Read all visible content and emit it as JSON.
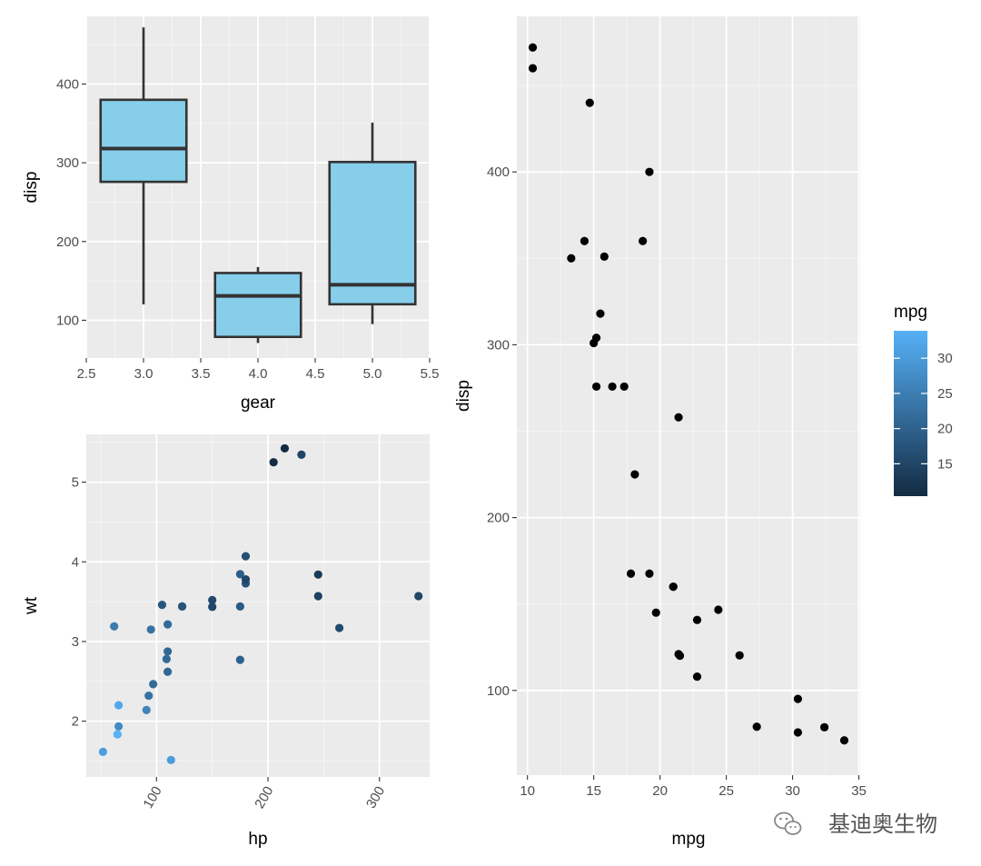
{
  "chart_data": [
    {
      "type": "box",
      "xlabel": "gear",
      "ylabel": "disp",
      "xlim": [
        2.5,
        5.5
      ],
      "ylim": [
        52,
        486
      ],
      "x_ticks": [
        "2.5",
        "3.0",
        "3.5",
        "4.0",
        "4.5",
        "5.0",
        "5.5"
      ],
      "x_tick_values": [
        2.5,
        3.0,
        3.5,
        4.0,
        4.5,
        5.0,
        5.5
      ],
      "y_ticks": [
        "100",
        "200",
        "300",
        "400"
      ],
      "y_tick_values": [
        100,
        200,
        300,
        400
      ],
      "fill_color": "#87CEEB",
      "line_color": "#333333",
      "boxes": [
        {
          "x": 3.0,
          "lower_whisker": 120.1,
          "q1": 275.8,
          "median": 318.0,
          "q3": 380.0,
          "upper_whisker": 472.0
        },
        {
          "x": 4.0,
          "lower_whisker": 71.1,
          "q1": 78.85,
          "median": 130.9,
          "q3": 160.0,
          "upper_whisker": 167.6
        },
        {
          "x": 5.0,
          "lower_whisker": 95.1,
          "q1": 120.3,
          "median": 145.0,
          "q3": 301.0,
          "upper_whisker": 351.0
        }
      ],
      "grid": true
    },
    {
      "type": "scatter",
      "xlabel": "hp",
      "ylabel": "wt",
      "xlim": [
        37,
        345
      ],
      "ylim": [
        1.3,
        5.6
      ],
      "x_ticks": [
        "100",
        "200",
        "300"
      ],
      "x_tick_values": [
        100,
        200,
        300
      ],
      "x_tick_rotation": -60,
      "y_ticks": [
        "2",
        "3",
        "4",
        "5"
      ],
      "y_tick_values": [
        2,
        3,
        4,
        5
      ],
      "color_by": "mpg",
      "color_low": "#132B43",
      "color_high": "#56B1F7",
      "color_range": [
        10.4,
        33.9
      ],
      "points": [
        {
          "x": 110,
          "y": 2.62,
          "c": 21.0
        },
        {
          "x": 110,
          "y": 2.875,
          "c": 21.0
        },
        {
          "x": 93,
          "y": 2.32,
          "c": 22.8
        },
        {
          "x": 110,
          "y": 3.215,
          "c": 21.4
        },
        {
          "x": 175,
          "y": 3.44,
          "c": 18.7
        },
        {
          "x": 105,
          "y": 3.46,
          "c": 18.1
        },
        {
          "x": 245,
          "y": 3.57,
          "c": 14.3
        },
        {
          "x": 62,
          "y": 3.19,
          "c": 24.4
        },
        {
          "x": 95,
          "y": 3.15,
          "c": 22.8
        },
        {
          "x": 123,
          "y": 3.44,
          "c": 19.2
        },
        {
          "x": 123,
          "y": 3.44,
          "c": 17.8
        },
        {
          "x": 180,
          "y": 4.07,
          "c": 16.4
        },
        {
          "x": 180,
          "y": 3.73,
          "c": 17.3
        },
        {
          "x": 180,
          "y": 3.78,
          "c": 15.2
        },
        {
          "x": 205,
          "y": 5.25,
          "c": 10.4
        },
        {
          "x": 215,
          "y": 5.424,
          "c": 10.4
        },
        {
          "x": 230,
          "y": 5.345,
          "c": 14.7
        },
        {
          "x": 66,
          "y": 2.2,
          "c": 32.4
        },
        {
          "x": 52,
          "y": 1.615,
          "c": 30.4
        },
        {
          "x": 65,
          "y": 1.835,
          "c": 33.9
        },
        {
          "x": 97,
          "y": 2.465,
          "c": 21.5
        },
        {
          "x": 150,
          "y": 3.52,
          "c": 15.5
        },
        {
          "x": 150,
          "y": 3.435,
          "c": 15.2
        },
        {
          "x": 245,
          "y": 3.84,
          "c": 13.3
        },
        {
          "x": 175,
          "y": 3.845,
          "c": 19.2
        },
        {
          "x": 66,
          "y": 1.935,
          "c": 27.3
        },
        {
          "x": 91,
          "y": 2.14,
          "c": 26.0
        },
        {
          "x": 113,
          "y": 1.513,
          "c": 30.4
        },
        {
          "x": 264,
          "y": 3.17,
          "c": 15.8
        },
        {
          "x": 175,
          "y": 2.77,
          "c": 19.7
        },
        {
          "x": 335,
          "y": 3.57,
          "c": 15.0
        },
        {
          "x": 109,
          "y": 2.78,
          "c": 21.4
        }
      ],
      "legend": {
        "title": "mpg",
        "ticks": [
          "15",
          "20",
          "25",
          "30"
        ],
        "tick_values": [
          15,
          20,
          25,
          30
        ]
      },
      "grid": true
    },
    {
      "type": "scatter",
      "xlabel": "mpg",
      "ylabel": "disp",
      "xlim": [
        9.2,
        35.1
      ],
      "ylim": [
        51,
        490
      ],
      "x_ticks": [
        "10",
        "15",
        "20",
        "25",
        "30",
        "35"
      ],
      "x_tick_values": [
        10,
        15,
        20,
        25,
        30,
        35
      ],
      "y_ticks": [
        "100",
        "200",
        "300",
        "400"
      ],
      "y_tick_values": [
        100,
        200,
        300,
        400
      ],
      "point_color": "#000000",
      "points": [
        {
          "x": 21.0,
          "y": 160
        },
        {
          "x": 21.0,
          "y": 160
        },
        {
          "x": 22.8,
          "y": 108
        },
        {
          "x": 21.4,
          "y": 258
        },
        {
          "x": 18.7,
          "y": 360
        },
        {
          "x": 18.1,
          "y": 225
        },
        {
          "x": 14.3,
          "y": 360
        },
        {
          "x": 24.4,
          "y": 146.7
        },
        {
          "x": 22.8,
          "y": 140.8
        },
        {
          "x": 19.2,
          "y": 167.6
        },
        {
          "x": 17.8,
          "y": 167.6
        },
        {
          "x": 16.4,
          "y": 275.8
        },
        {
          "x": 17.3,
          "y": 275.8
        },
        {
          "x": 15.2,
          "y": 275.8
        },
        {
          "x": 10.4,
          "y": 472
        },
        {
          "x": 10.4,
          "y": 460
        },
        {
          "x": 14.7,
          "y": 440
        },
        {
          "x": 32.4,
          "y": 78.7
        },
        {
          "x": 30.4,
          "y": 75.7
        },
        {
          "x": 33.9,
          "y": 71.1
        },
        {
          "x": 21.5,
          "y": 120.1
        },
        {
          "x": 15.5,
          "y": 318
        },
        {
          "x": 15.2,
          "y": 304
        },
        {
          "x": 13.3,
          "y": 350
        },
        {
          "x": 19.2,
          "y": 400
        },
        {
          "x": 27.3,
          "y": 79
        },
        {
          "x": 26.0,
          "y": 120.3
        },
        {
          "x": 30.4,
          "y": 95.1
        },
        {
          "x": 15.8,
          "y": 351
        },
        {
          "x": 19.7,
          "y": 145
        },
        {
          "x": 15.0,
          "y": 301
        },
        {
          "x": 21.4,
          "y": 121
        }
      ],
      "grid": true
    }
  ],
  "watermark": {
    "text": "基迪奥生物",
    "icon": "wechat-icon"
  }
}
